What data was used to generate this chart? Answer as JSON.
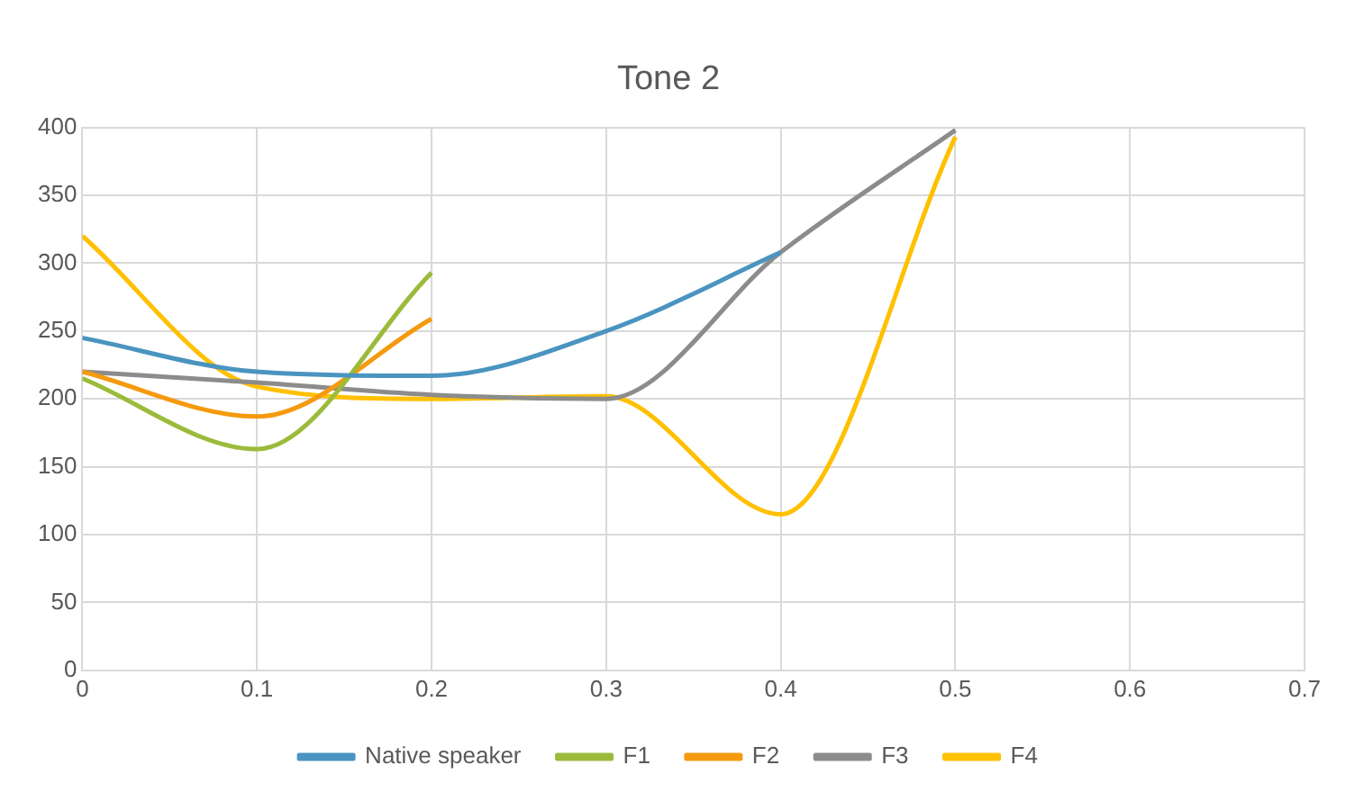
{
  "chart_data": {
    "type": "line",
    "title": "Tone 2",
    "xlim": [
      0,
      0.7
    ],
    "xticks": [
      0,
      0.1,
      0.2,
      0.3,
      0.4,
      0.5,
      0.6,
      0.7
    ],
    "ylim": [
      0,
      400
    ],
    "yticks": [
      0,
      50,
      100,
      150,
      200,
      250,
      300,
      350,
      400
    ],
    "grid": true,
    "legend": "bottom",
    "marker": "none",
    "series": [
      {
        "name": "Native speaker",
        "color": "#4a94c0",
        "x": [
          0,
          0.1,
          0.2,
          0.3,
          0.4
        ],
        "values": [
          245,
          220,
          217,
          250,
          308
        ]
      },
      {
        "name": "F1",
        "color": "#9bbb3b",
        "x": [
          0,
          0.1,
          0.2
        ],
        "values": [
          215,
          163,
          293
        ]
      },
      {
        "name": "F2",
        "color": "#f59a0f",
        "x": [
          0,
          0.1,
          0.2
        ],
        "values": [
          220,
          187,
          259
        ]
      },
      {
        "name": "F3",
        "color": "#8c8c8c",
        "x": [
          0,
          0.1,
          0.2,
          0.3,
          0.4,
          0.5
        ],
        "values": [
          220,
          212,
          203,
          200,
          308,
          398
        ]
      },
      {
        "name": "F4",
        "color": "#ffc000",
        "x": [
          0,
          0.1,
          0.2,
          0.3,
          0.4,
          0.5
        ],
        "values": [
          320,
          209,
          200,
          202,
          115,
          393
        ]
      }
    ]
  }
}
